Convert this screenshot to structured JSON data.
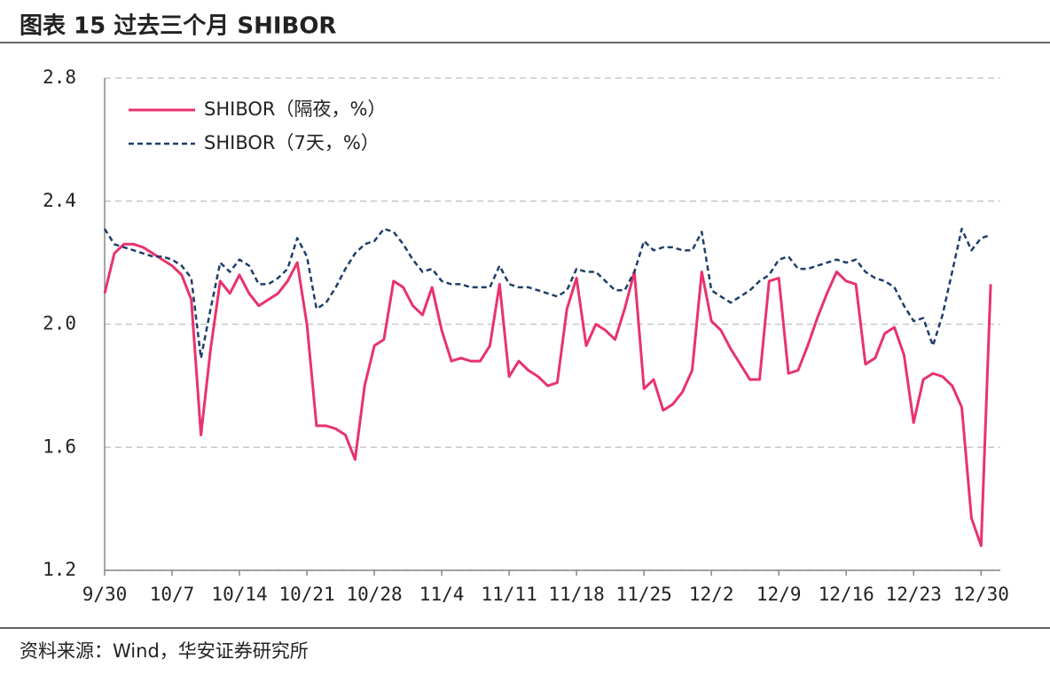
{
  "chart_data": {
    "type": "line",
    "title": "图表 15 过去三个月 SHIBOR",
    "source": "资料来源：Wind，华安证券研究所",
    "categories": [
      "9/30",
      null,
      null,
      null,
      null,
      null,
      null,
      "10/7",
      null,
      null,
      null,
      null,
      null,
      null,
      "10/14",
      null,
      null,
      null,
      null,
      null,
      null,
      "10/21",
      null,
      null,
      null,
      null,
      null,
      null,
      "10/28",
      null,
      null,
      null,
      null,
      null,
      null,
      "11/4",
      null,
      null,
      null,
      null,
      null,
      null,
      "11/11",
      null,
      null,
      null,
      null,
      null,
      null,
      "11/18",
      null,
      null,
      null,
      null,
      null,
      null,
      "11/25",
      null,
      null,
      null,
      null,
      null,
      null,
      "12/2",
      null,
      null,
      null,
      null,
      null,
      null,
      "12/9",
      null,
      null,
      null,
      null,
      null,
      null,
      "12/16",
      null,
      null,
      null,
      null,
      null,
      null,
      "12/23",
      null,
      null,
      null,
      null,
      null,
      null,
      "12/30",
      null
    ],
    "series": [
      {
        "name": "SHIBOR（隔夜，%）",
        "color": "#e8336d",
        "dash": false,
        "values": [
          2.1,
          2.23,
          2.26,
          2.26,
          2.25,
          2.23,
          2.21,
          2.19,
          2.16,
          2.08,
          1.64,
          1.92,
          2.14,
          2.1,
          2.16,
          2.1,
          2.06,
          2.08,
          2.1,
          2.14,
          2.2,
          2.0,
          1.67,
          1.67,
          1.66,
          1.64,
          1.56,
          1.8,
          1.93,
          1.95,
          2.14,
          2.12,
          2.06,
          2.03,
          2.12,
          1.98,
          1.88,
          1.89,
          1.88,
          1.88,
          1.93,
          2.13,
          1.83,
          1.88,
          1.85,
          1.83,
          1.8,
          1.81,
          2.05,
          2.15,
          1.93,
          2.0,
          1.98,
          1.95,
          2.05,
          2.17,
          1.79,
          1.82,
          1.72,
          1.74,
          1.78,
          1.85,
          2.17,
          2.01,
          1.98,
          1.92,
          1.87,
          1.82,
          1.82,
          2.14,
          2.15,
          1.84,
          1.85,
          1.93,
          2.02,
          2.1,
          2.17,
          2.14,
          2.13,
          1.87,
          1.89,
          1.97,
          1.99,
          1.9,
          1.68,
          1.82,
          1.84,
          1.83,
          1.8,
          1.73,
          1.37,
          1.28,
          2.13
        ]
      },
      {
        "name": "SHIBOR（7天，%）",
        "color": "#1f3e6b",
        "dash": true,
        "values": [
          2.31,
          2.26,
          2.25,
          2.24,
          2.23,
          2.22,
          2.22,
          2.21,
          2.19,
          2.15,
          1.89,
          2.05,
          2.2,
          2.17,
          2.21,
          2.19,
          2.13,
          2.13,
          2.15,
          2.18,
          2.28,
          2.22,
          2.05,
          2.07,
          2.12,
          2.18,
          2.23,
          2.26,
          2.27,
          2.31,
          2.3,
          2.26,
          2.21,
          2.17,
          2.18,
          2.14,
          2.13,
          2.13,
          2.12,
          2.12,
          2.12,
          2.19,
          2.13,
          2.12,
          2.12,
          2.11,
          2.1,
          2.09,
          2.11,
          2.18,
          2.17,
          2.17,
          2.14,
          2.11,
          2.11,
          2.17,
          2.27,
          2.24,
          2.25,
          2.25,
          2.24,
          2.24,
          2.3,
          2.11,
          2.09,
          2.07,
          2.09,
          2.11,
          2.14,
          2.16,
          2.21,
          2.22,
          2.18,
          2.18,
          2.19,
          2.2,
          2.21,
          2.2,
          2.21,
          2.17,
          2.15,
          2.14,
          2.12,
          2.06,
          2.01,
          2.02,
          1.93,
          2.03,
          2.17,
          2.31,
          2.24,
          2.28,
          2.29
        ]
      }
    ],
    "ylim": [
      1.2,
      2.8
    ],
    "yticks": [
      1.2,
      1.6,
      {
        "value": 2,
        "label": "2.0"
      },
      2.4,
      2.8
    ],
    "grid": true,
    "legend": "upper left"
  }
}
